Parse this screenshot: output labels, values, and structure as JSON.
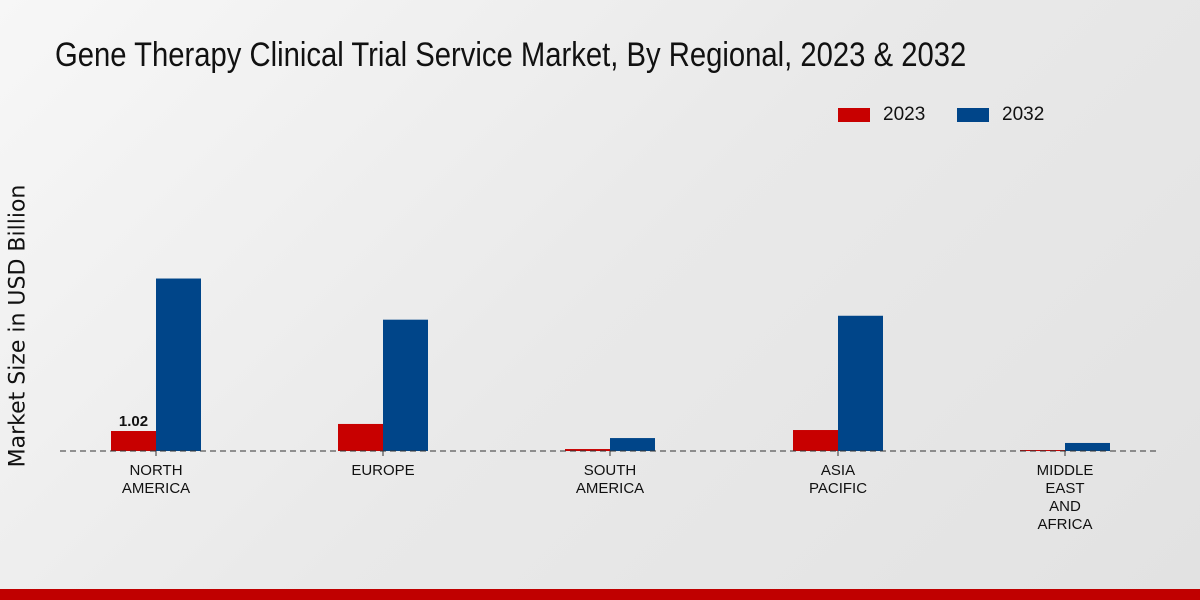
{
  "chart_data": {
    "type": "bar",
    "title": "Gene Therapy Clinical Trial Service Market, By Regional, 2023 & 2032",
    "xlabel": "",
    "ylabel": "Market Size in USD Billion",
    "ylim": [
      0,
      10
    ],
    "grid": false,
    "legend_placement": "top-right",
    "categories": [
      [
        "NORTH",
        "AMERICA"
      ],
      [
        "EUROPE"
      ],
      [
        "SOUTH",
        "AMERICA"
      ],
      [
        "ASIA",
        "PACIFIC"
      ],
      [
        "MIDDLE",
        "EAST",
        "AND",
        "AFRICA"
      ]
    ],
    "series": [
      {
        "name": "2023",
        "color": "#c80000",
        "values": [
          1.02,
          1.38,
          0.1,
          1.07,
          0.05
        ]
      },
      {
        "name": "2032",
        "color": "#004589",
        "values": [
          8.8,
          6.7,
          0.66,
          6.9,
          0.41
        ]
      }
    ],
    "data_labels": [
      {
        "series": 0,
        "index": 0,
        "text": "1.02"
      }
    ]
  }
}
